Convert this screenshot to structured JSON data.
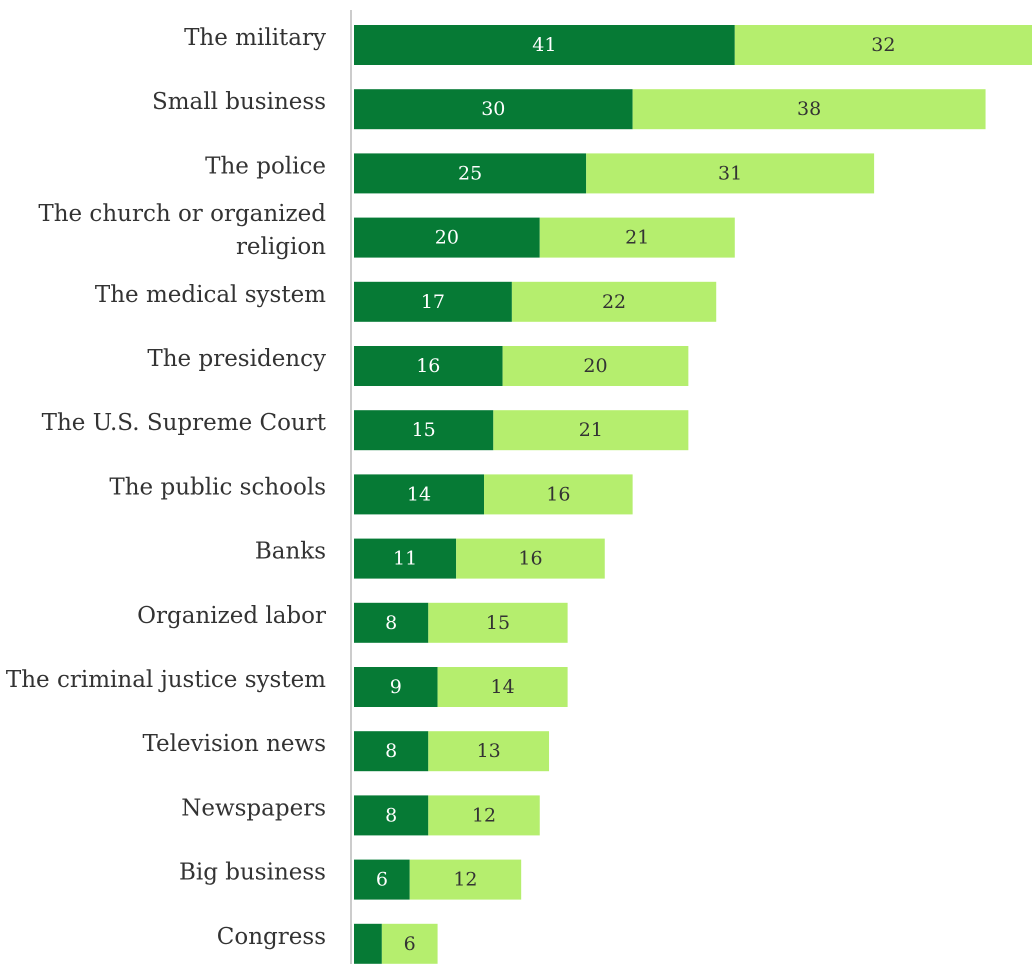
{
  "chart_data": {
    "type": "bar",
    "orientation": "horizontal",
    "stacked": true,
    "title": "",
    "xlabel": "",
    "ylabel": "",
    "legend": "none",
    "grid": false,
    "xlim": [
      0,
      73
    ],
    "categories": [
      "The military",
      "Small business",
      "The police",
      "The church or organized religion",
      "The medical system",
      "The presidency",
      "The U.S. Supreme Court",
      "The public schools",
      "Banks",
      "Organized labor",
      "The criminal justice system",
      "Television news",
      "Newspapers",
      "Big business",
      "Congress"
    ],
    "series": [
      {
        "color": "#067a35",
        "label_color": "#ffffff",
        "values": [
          41,
          30,
          25,
          20,
          17,
          16,
          15,
          14,
          11,
          8,
          9,
          8,
          8,
          6,
          3
        ]
      },
      {
        "color": "#b5ee6e",
        "label_color": "#333333",
        "values": [
          32,
          38,
          31,
          21,
          22,
          20,
          21,
          16,
          16,
          15,
          14,
          13,
          12,
          12,
          6
        ]
      }
    ],
    "data_labels": [
      [
        "41",
        "30",
        "25",
        "20",
        "17",
        "16",
        "15",
        "14",
        "11",
        "8",
        "9",
        "8",
        "8",
        "6",
        ""
      ],
      [
        "32",
        "38",
        "31",
        "21",
        "22",
        "20",
        "21",
        "16",
        "16",
        "15",
        "14",
        "13",
        "12",
        "12",
        "6"
      ]
    ],
    "category_label_lines": [
      [
        "The military"
      ],
      [
        "Small business"
      ],
      [
        "The police"
      ],
      [
        "The church or organized",
        "religion"
      ],
      [
        "The medical system"
      ],
      [
        "The presidency"
      ],
      [
        "The U.S. Supreme Court"
      ],
      [
        "The public schools"
      ],
      [
        "Banks"
      ],
      [
        "Organized labor"
      ],
      [
        "The criminal justice system"
      ],
      [
        "Television news"
      ],
      [
        "Newspapers"
      ],
      [
        "Big business"
      ],
      [
        "Congress"
      ]
    ],
    "axis_color": "#cccccc"
  }
}
